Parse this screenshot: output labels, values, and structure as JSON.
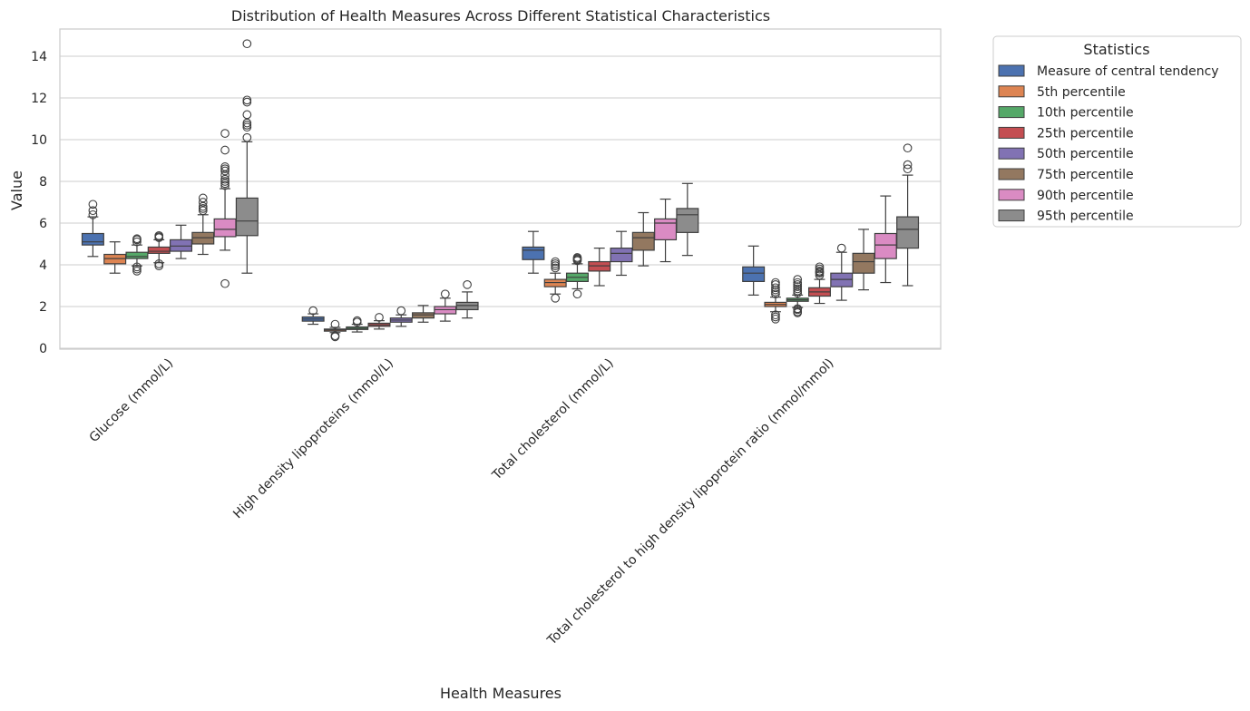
{
  "chart_data": {
    "type": "box",
    "title": "Distribution of Health Measures Across Different Statistical Characteristics",
    "xlabel": "Health Measures",
    "ylabel": "Value",
    "ylim": [
      -0.1,
      15.3
    ],
    "yticks": [
      0,
      2,
      4,
      6,
      8,
      10,
      12,
      14
    ],
    "grid": "horizontal",
    "legend_title": "Statistics",
    "legend_position": "outside-top-right",
    "categories": [
      "Glucose (mmol/L)",
      "High density lipoproteins (mmol/L)",
      "Total cholesterol (mmol/L)",
      "Total cholesterol to high density lipoprotein ratio (mmol/mmol)"
    ],
    "series": [
      {
        "name": "Measure of central tendency",
        "color": "#4c72b0",
        "boxes": [
          {
            "whislo": 4.4,
            "q1": 4.95,
            "med": 5.1,
            "q3": 5.5,
            "whishi": 6.3,
            "fliers": [
              6.4,
              6.6,
              6.9
            ]
          },
          {
            "whislo": 1.15,
            "q1": 1.3,
            "med": 1.4,
            "q3": 1.5,
            "whishi": 1.65,
            "fliers": [
              1.8
            ]
          },
          {
            "whislo": 3.6,
            "q1": 4.25,
            "med": 4.7,
            "q3": 4.85,
            "whishi": 5.6,
            "fliers": []
          },
          {
            "whislo": 2.55,
            "q1": 3.2,
            "med": 3.6,
            "q3": 3.9,
            "whishi": 4.9,
            "fliers": []
          }
        ]
      },
      {
        "name": "5th percentile",
        "color": "#dd8452",
        "boxes": [
          {
            "whislo": 3.6,
            "q1": 4.05,
            "med": 4.3,
            "q3": 4.5,
            "whishi": 5.1,
            "fliers": []
          },
          {
            "whislo": 0.75,
            "q1": 0.82,
            "med": 0.88,
            "q3": 0.92,
            "whishi": 1.0,
            "fliers": [
              0.55,
              0.6,
              1.15
            ]
          },
          {
            "whislo": 2.6,
            "q1": 2.95,
            "med": 3.15,
            "q3": 3.3,
            "whishi": 3.6,
            "fliers": [
              2.4,
              3.85,
              3.95,
              4.05,
              4.15
            ]
          },
          {
            "whislo": 1.75,
            "q1": 2.0,
            "med": 2.1,
            "q3": 2.2,
            "whishi": 2.45,
            "fliers": [
              1.4,
              1.5,
              1.6,
              2.6,
              2.7,
              2.8,
              2.9,
              3.05,
              3.15
            ]
          }
        ]
      },
      {
        "name": "10th percentile",
        "color": "#55a868",
        "boxes": [
          {
            "whislo": 3.95,
            "q1": 4.3,
            "med": 4.4,
            "q3": 4.6,
            "whishi": 4.95,
            "fliers": [
              3.7,
              3.8,
              3.9,
              5.1,
              5.2,
              5.25
            ]
          },
          {
            "whislo": 0.78,
            "q1": 0.9,
            "med": 0.95,
            "q3": 1.02,
            "whishi": 1.15,
            "fliers": [
              1.25,
              1.32
            ]
          },
          {
            "whislo": 2.85,
            "q1": 3.2,
            "med": 3.4,
            "q3": 3.6,
            "whishi": 4.05,
            "fliers": [
              2.6,
              4.2,
              4.25,
              4.3,
              4.35
            ]
          },
          {
            "whislo": 1.95,
            "q1": 2.25,
            "med": 2.32,
            "q3": 2.4,
            "whishi": 2.55,
            "fliers": [
              1.7,
              1.75,
              1.85,
              1.9,
              2.65,
              2.75,
              2.85,
              2.95,
              3.05,
              3.15,
              3.3
            ]
          }
        ]
      },
      {
        "name": "25th percentile",
        "color": "#c44e52",
        "boxes": [
          {
            "whislo": 4.1,
            "q1": 4.55,
            "med": 4.65,
            "q3": 4.85,
            "whishi": 5.2,
            "fliers": [
              3.95,
              4.05,
              5.3,
              5.35,
              5.4
            ]
          },
          {
            "whislo": 0.92,
            "q1": 1.05,
            "med": 1.12,
            "q3": 1.2,
            "whishi": 1.32,
            "fliers": [
              1.48
            ]
          },
          {
            "whislo": 3.0,
            "q1": 3.7,
            "med": 3.95,
            "q3": 4.15,
            "whishi": 4.8,
            "fliers": []
          },
          {
            "whislo": 2.15,
            "q1": 2.5,
            "med": 2.7,
            "q3": 2.9,
            "whishi": 3.3,
            "fliers": [
              3.5,
              3.6,
              3.65,
              3.7,
              3.8,
              3.9
            ]
          }
        ]
      },
      {
        "name": "50th percentile",
        "color": "#8172b3",
        "boxes": [
          {
            "whislo": 4.3,
            "q1": 4.65,
            "med": 4.9,
            "q3": 5.2,
            "whishi": 5.9,
            "fliers": []
          },
          {
            "whislo": 1.05,
            "q1": 1.25,
            "med": 1.35,
            "q3": 1.45,
            "whishi": 1.6,
            "fliers": [
              1.8
            ]
          },
          {
            "whislo": 3.5,
            "q1": 4.15,
            "med": 4.55,
            "q3": 4.8,
            "whishi": 5.6,
            "fliers": []
          },
          {
            "whislo": 2.3,
            "q1": 2.95,
            "med": 3.3,
            "q3": 3.6,
            "whishi": 4.6,
            "fliers": [
              4.8
            ]
          }
        ]
      },
      {
        "name": "75th percentile",
        "color": "#937860",
        "boxes": [
          {
            "whislo": 4.5,
            "q1": 5.0,
            "med": 5.3,
            "q3": 5.55,
            "whishi": 6.4,
            "fliers": [
              6.6,
              6.7,
              6.8,
              7.0,
              7.2
            ]
          },
          {
            "whislo": 1.25,
            "q1": 1.45,
            "med": 1.6,
            "q3": 1.7,
            "whishi": 2.05,
            "fliers": []
          },
          {
            "whislo": 3.95,
            "q1": 4.7,
            "med": 5.3,
            "q3": 5.55,
            "whishi": 6.5,
            "fliers": []
          },
          {
            "whislo": 2.8,
            "q1": 3.6,
            "med": 4.15,
            "q3": 4.55,
            "whishi": 5.7,
            "fliers": []
          }
        ]
      },
      {
        "name": "90th percentile",
        "color": "#da8bc3",
        "boxes": [
          {
            "whislo": 4.7,
            "q1": 5.35,
            "med": 5.7,
            "q3": 6.2,
            "whishi": 7.65,
            "fliers": [
              3.1,
              7.8,
              7.9,
              8.0,
              8.1,
              8.3,
              8.5,
              8.6,
              8.7,
              9.5,
              10.3
            ]
          },
          {
            "whislo": 1.3,
            "q1": 1.65,
            "med": 1.85,
            "q3": 2.0,
            "whishi": 2.4,
            "fliers": [
              2.6
            ]
          },
          {
            "whislo": 4.15,
            "q1": 5.2,
            "med": 6.0,
            "q3": 6.2,
            "whishi": 7.15,
            "fliers": []
          },
          {
            "whislo": 3.15,
            "q1": 4.3,
            "med": 4.95,
            "q3": 5.5,
            "whishi": 7.3,
            "fliers": []
          }
        ]
      },
      {
        "name": "95th percentile",
        "color": "#8c8c8c",
        "boxes": [
          {
            "whislo": 3.6,
            "q1": 5.4,
            "med": 6.1,
            "q3": 7.2,
            "whishi": 9.9,
            "fliers": [
              10.1,
              10.6,
              10.7,
              10.8,
              11.2,
              11.8,
              11.9,
              14.6
            ]
          },
          {
            "whislo": 1.45,
            "q1": 1.85,
            "med": 2.05,
            "q3": 2.2,
            "whishi": 2.7,
            "fliers": [
              3.05
            ]
          },
          {
            "whislo": 4.45,
            "q1": 5.55,
            "med": 6.4,
            "q3": 6.7,
            "whishi": 7.9,
            "fliers": []
          },
          {
            "whislo": 3.0,
            "q1": 4.8,
            "med": 5.7,
            "q3": 6.3,
            "whishi": 8.3,
            "fliers": [
              8.6,
              8.8,
              9.6
            ]
          }
        ]
      }
    ]
  }
}
